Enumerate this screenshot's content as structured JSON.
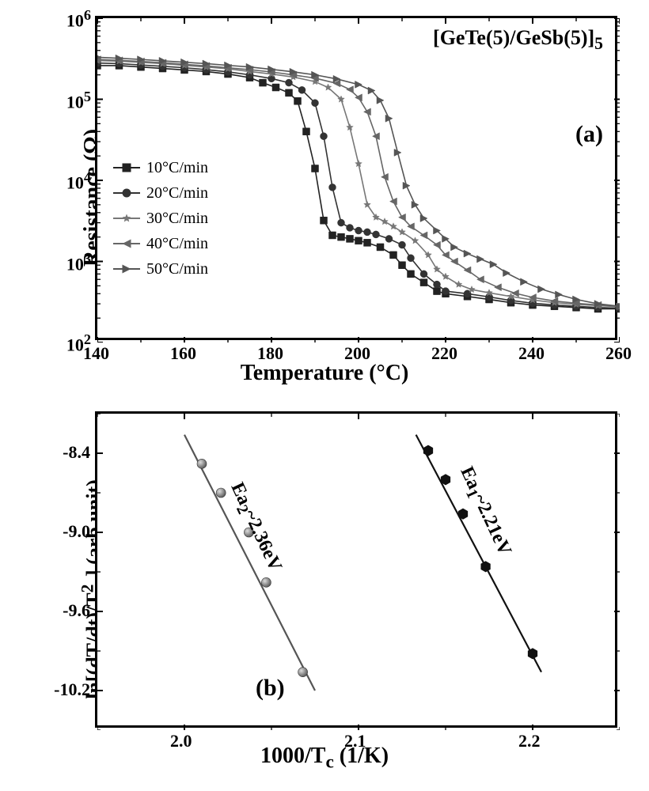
{
  "panel_a": {
    "type": "line-scatter",
    "title": "[GeTe(5)/GeSb(5)]",
    "title_sub": "5",
    "panel_label": "(a)",
    "xlabel": "Temperature (°C)",
    "ylabel": "Resistance (Ω)",
    "xlim": [
      140,
      260
    ],
    "xtick_step": 20,
    "xticks": [
      140,
      160,
      180,
      200,
      220,
      240,
      260
    ],
    "yscale": "log",
    "ylim": [
      100,
      1000000
    ],
    "ytick_labels": [
      "10",
      "10",
      "10",
      "10",
      "10"
    ],
    "ytick_exponents": [
      "2",
      "3",
      "4",
      "5",
      "6"
    ],
    "legend_position": "lower-left",
    "series": [
      {
        "label": "10°C/min",
        "marker": "square",
        "color": "#222222",
        "x": [
          140,
          145,
          150,
          155,
          160,
          165,
          170,
          175,
          178,
          181,
          184,
          186,
          188,
          190,
          192,
          194,
          196,
          198,
          200,
          202,
          205,
          208,
          210,
          212,
          215,
          218,
          220,
          225,
          230,
          235,
          240,
          245,
          250,
          255,
          260
        ],
        "y": [
          260000,
          260000,
          250000,
          240000,
          230000,
          220000,
          205000,
          185000,
          160000,
          140000,
          120000,
          95000,
          40000,
          14000,
          3200,
          2100,
          2000,
          1900,
          1800,
          1700,
          1500,
          1200,
          900,
          700,
          550,
          430,
          400,
          370,
          340,
          310,
          290,
          280,
          270,
          260,
          260
        ]
      },
      {
        "label": "20°C/min",
        "marker": "circle",
        "color": "#333333",
        "x": [
          140,
          145,
          150,
          155,
          160,
          165,
          170,
          175,
          180,
          184,
          187,
          190,
          192,
          194,
          196,
          198,
          200,
          202,
          204,
          207,
          210,
          212,
          215,
          218,
          220,
          225,
          230,
          235,
          240,
          245,
          250,
          255,
          260
        ],
        "y": [
          280000,
          275000,
          265000,
          255000,
          245000,
          232000,
          218000,
          200000,
          180000,
          160000,
          130000,
          90000,
          35000,
          8200,
          3000,
          2600,
          2400,
          2300,
          2150,
          1900,
          1600,
          1100,
          700,
          520,
          430,
          400,
          365,
          330,
          305,
          290,
          280,
          270,
          265
        ]
      },
      {
        "label": "30°C/min",
        "marker": "star",
        "color": "#777777",
        "x": [
          140,
          145,
          150,
          155,
          160,
          165,
          170,
          175,
          180,
          185,
          190,
          193,
          196,
          198,
          200,
          202,
          204,
          206,
          208,
          210,
          213,
          216,
          218,
          220,
          223,
          226,
          230,
          235,
          240,
          245,
          250,
          255,
          260
        ],
        "y": [
          300000,
          295000,
          285000,
          275000,
          262000,
          250000,
          238000,
          220000,
          205000,
          188000,
          165000,
          140000,
          100000,
          45000,
          16000,
          5000,
          3500,
          3100,
          2700,
          2300,
          1800,
          1200,
          800,
          650,
          520,
          450,
          410,
          370,
          335,
          310,
          295,
          285,
          275
        ]
      },
      {
        "label": "40°C/min",
        "marker": "triangle-left",
        "color": "#666666",
        "x": [
          140,
          145,
          150,
          155,
          160,
          165,
          170,
          175,
          180,
          185,
          190,
          195,
          198,
          200,
          202,
          204,
          206,
          208,
          210,
          212,
          215,
          218,
          220,
          222,
          225,
          228,
          232,
          236,
          240,
          245,
          250,
          255,
          260
        ],
        "y": [
          310000,
          302000,
          293000,
          282000,
          270000,
          258000,
          245000,
          232000,
          217000,
          200000,
          182000,
          157000,
          132000,
          105000,
          70000,
          35000,
          11000,
          5500,
          3500,
          2700,
          2100,
          1600,
          1200,
          1000,
          780,
          600,
          480,
          405,
          360,
          325,
          305,
          290,
          280
        ]
      },
      {
        "label": "50°C/min",
        "marker": "triangle-right",
        "color": "#555555",
        "x": [
          140,
          145,
          150,
          155,
          160,
          165,
          170,
          175,
          180,
          185,
          190,
          195,
          200,
          203,
          205,
          207,
          209,
          211,
          213,
          215,
          218,
          220,
          222,
          225,
          228,
          231,
          234,
          238,
          242,
          246,
          250,
          255,
          260
        ],
        "y": [
          330000,
          320000,
          310000,
          298000,
          286000,
          275000,
          262000,
          250000,
          234000,
          218000,
          200000,
          178000,
          152000,
          128000,
          97000,
          58000,
          22000,
          8600,
          5000,
          3400,
          2400,
          1900,
          1500,
          1250,
          1070,
          920,
          720,
          560,
          455,
          390,
          340,
          300,
          280
        ]
      }
    ],
    "background_color": "#ffffff",
    "axis_color": "#000000",
    "label_fontsize": 28,
    "tick_fontsize": 22,
    "marker_size": 9,
    "line_width": 1.6
  },
  "panel_b": {
    "type": "scatter-line",
    "panel_label": "(b)",
    "xlabel": "1000/T",
    "xlabel_sub": "c",
    "xlabel_suffix": " (1/K)",
    "ylabel": "ln[(dT/dt)/T",
    "ylabel_sup": "2",
    "ylabel_sub": "c",
    "ylabel_suffix": " (arb.unit)",
    "xlim": [
      1.95,
      2.25
    ],
    "xticks": [
      2.0,
      2.1,
      2.2
    ],
    "ylim": [
      -10.5,
      -8.1
    ],
    "yticks": [
      -10.2,
      -9.6,
      -9.0,
      -8.4
    ],
    "series": [
      {
        "label_prefix": "Ea",
        "label_sub": "2",
        "label_suffix": "~2.36eV",
        "marker": "sphere",
        "color": "#555555",
        "line_color": "#555555",
        "x": [
          2.01,
          2.021,
          2.037,
          2.047,
          2.068
        ],
        "y": [
          -8.48,
          -8.7,
          -9.0,
          -9.38,
          -10.06
        ],
        "fit_x": [
          2.0,
          2.075
        ],
        "fit_y": [
          -8.26,
          -10.2
        ],
        "label_x": 2.025,
        "label_y": -8.62
      },
      {
        "label_prefix": "Ea",
        "label_sub": "1",
        "label_suffix": "~2.21eV",
        "marker": "hexagon",
        "color": "#111111",
        "line_color": "#111111",
        "x": [
          2.14,
          2.15,
          2.16,
          2.173,
          2.2
        ],
        "y": [
          -8.38,
          -8.6,
          -8.86,
          -9.26,
          -9.92
        ],
        "fit_x": [
          2.133,
          2.205
        ],
        "fit_y": [
          -8.26,
          -10.06
        ],
        "label_x": 2.157,
        "label_y": -8.5
      }
    ],
    "background_color": "#ffffff",
    "axis_color": "#000000",
    "label_fontsize": 28,
    "tick_fontsize": 22,
    "marker_size": 10,
    "line_width": 2.2
  }
}
